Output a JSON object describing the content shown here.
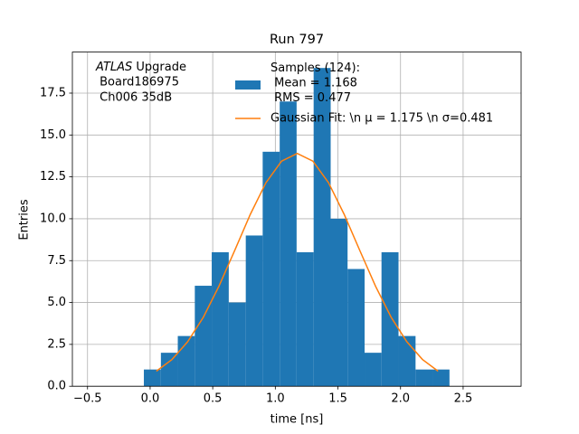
{
  "chart_data": {
    "type": "histogram",
    "title": "Run 797",
    "x_label": "time [ns]",
    "y_label": "Entries",
    "atlas_label": "ATLAS",
    "annotation": [
      " Upgrade",
      " Board186975",
      " Ch006 35dB"
    ],
    "bins": [
      -0.05,
      0.086,
      0.221,
      0.357,
      0.492,
      0.628,
      0.764,
      0.899,
      1.035,
      1.17,
      1.306,
      1.442,
      1.577,
      1.713,
      1.848,
      1.984,
      2.12,
      2.255,
      2.391
    ],
    "series": [
      {
        "name": "Samples (124):\n Mean = 1.168\n RMS = 0.477",
        "color": "#1f77b4",
        "values": [
          1,
          2,
          3,
          6,
          8,
          5,
          9,
          14,
          17,
          8,
          19,
          10,
          7,
          2,
          8,
          3,
          1,
          1
        ]
      },
      {
        "name": "Gaussian Fit: \\n μ = 1.175 \\n σ=0.481",
        "color": "#ff7f0e",
        "type": "line",
        "x": [
          0.05,
          0.175,
          0.3,
          0.425,
          0.55,
          0.675,
          0.8,
          0.925,
          1.05,
          1.175,
          1.3,
          1.425,
          1.55,
          1.675,
          1.8,
          1.925,
          2.05,
          2.175,
          2.3
        ],
        "values": [
          0.9,
          1.6,
          2.66,
          4.12,
          5.98,
          8.1,
          10.26,
          12.15,
          13.44,
          13.9,
          13.44,
          12.15,
          10.26,
          8.1,
          5.98,
          4.12,
          2.66,
          1.6,
          0.9
        ]
      }
    ],
    "xlim": [
      -0.621,
      2.963
    ],
    "ylim": [
      0,
      19.95
    ],
    "xticks": [
      {
        "value": -0.5,
        "label": "−0.5"
      },
      {
        "value": 0,
        "label": "0.0"
      },
      0.5,
      {
        "value": 1,
        "label": "1.0"
      },
      1.5,
      {
        "value": 2,
        "label": "2.0"
      },
      2.5
    ],
    "yticks": [
      {
        "value": 0,
        "label": "0.0"
      },
      2.5,
      {
        "value": 5,
        "label": "5.0"
      },
      7.5,
      {
        "value": 10,
        "label": "10.0"
      },
      12.5,
      {
        "value": 15,
        "label": "15.0"
      },
      17.5
    ],
    "grid": true,
    "legend": "upper center"
  }
}
